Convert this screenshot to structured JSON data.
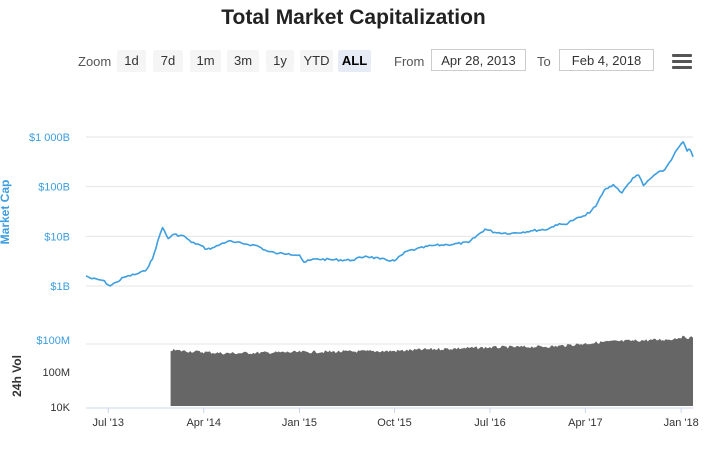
{
  "title": "Total Market Capitalization",
  "toolbar": {
    "zoom_label": "Zoom",
    "zoom_buttons": [
      "1d",
      "7d",
      "1m",
      "3m",
      "1y",
      "YTD",
      "ALL"
    ],
    "active_zoom": "ALL",
    "from_label": "From",
    "from_value": "Apr 28, 2013",
    "to_label": "To",
    "to_value": "Feb 4, 2018",
    "menu_icon": "hamburger-menu-icon"
  },
  "colors": {
    "line": "#3d9ee0",
    "axis_label": "#3d9ee0",
    "volume": "#666666",
    "grid": "#e6e6e6"
  },
  "chart_data": [
    {
      "type": "line",
      "ylabel": "Market Cap",
      "yscale": "log",
      "ylim": [
        "$1B",
        "$1 000B"
      ],
      "ytick_labels": [
        "$1B",
        "$10B",
        "$100B",
        "$1 000B"
      ],
      "xtick_labels": [
        "Jul '13",
        "Apr '14",
        "Jan '15",
        "Oct '15",
        "Jul '16",
        "Apr '17",
        "Jan '18"
      ],
      "grid": true,
      "series": [
        {
          "unit": "billion USD",
          "points": [
            [
              "2013-04-28",
              1.6
            ],
            [
              "2013-05-15",
              1.4
            ],
            [
              "2013-06-15",
              1.3
            ],
            [
              "2013-07-06",
              1.0
            ],
            [
              "2013-07-25",
              1.2
            ],
            [
              "2013-08-15",
              1.5
            ],
            [
              "2013-09-15",
              1.7
            ],
            [
              "2013-10-15",
              2.0
            ],
            [
              "2013-11-05",
              3.5
            ],
            [
              "2013-11-20",
              8.0
            ],
            [
              "2013-12-04",
              15.0
            ],
            [
              "2013-12-20",
              9.0
            ],
            [
              "2014-01-05",
              11.0
            ],
            [
              "2014-02-05",
              10.0
            ],
            [
              "2014-02-25",
              7.5
            ],
            [
              "2014-03-15",
              7.0
            ],
            [
              "2014-04-10",
              5.5
            ],
            [
              "2014-05-01",
              6.0
            ],
            [
              "2014-05-20",
              7.0
            ],
            [
              "2014-06-10",
              8.0
            ],
            [
              "2014-07-01",
              7.5
            ],
            [
              "2014-08-01",
              7.0
            ],
            [
              "2014-09-01",
              6.5
            ],
            [
              "2014-10-01",
              5.0
            ],
            [
              "2014-11-01",
              4.5
            ],
            [
              "2014-12-01",
              4.5
            ],
            [
              "2015-01-01",
              4.2
            ],
            [
              "2015-01-14",
              3.0
            ],
            [
              "2015-02-15",
              3.5
            ],
            [
              "2015-04-01",
              3.4
            ],
            [
              "2015-06-01",
              3.3
            ],
            [
              "2015-07-10",
              4.0
            ],
            [
              "2015-08-20",
              3.5
            ],
            [
              "2015-10-01",
              3.2
            ],
            [
              "2015-11-05",
              5.0
            ],
            [
              "2015-12-01",
              5.5
            ],
            [
              "2016-01-15",
              6.5
            ],
            [
              "2016-03-01",
              6.8
            ],
            [
              "2016-05-01",
              7.5
            ],
            [
              "2016-06-17",
              14.0
            ],
            [
              "2016-07-15",
              12.0
            ],
            [
              "2016-09-01",
              11.5
            ],
            [
              "2016-11-01",
              13.0
            ],
            [
              "2016-12-15",
              14.0
            ],
            [
              "2017-01-05",
              17.0
            ],
            [
              "2017-02-01",
              17.5
            ],
            [
              "2017-03-01",
              22.0
            ],
            [
              "2017-04-01",
              26.0
            ],
            [
              "2017-05-01",
              40.0
            ],
            [
              "2017-05-25",
              85.0
            ],
            [
              "2017-06-20",
              110.0
            ],
            [
              "2017-07-15",
              75.0
            ],
            [
              "2017-08-15",
              150.0
            ],
            [
              "2017-09-01",
              170.0
            ],
            [
              "2017-09-15",
              105.0
            ],
            [
              "2017-10-15",
              170.0
            ],
            [
              "2017-11-15",
              220.0
            ],
            [
              "2017-12-10",
              420.0
            ],
            [
              "2017-12-22",
              580.0
            ],
            [
              "2018-01-07",
              800.0
            ],
            [
              "2018-01-18",
              520.0
            ],
            [
              "2018-01-26",
              560.0
            ],
            [
              "2018-02-04",
              400.0
            ]
          ]
        }
      ]
    },
    {
      "type": "area",
      "ylabel": "24h Vol",
      "yscale": "log",
      "ytick_labels": [
        "10K",
        "100M",
        "$100M"
      ],
      "series": [
        {
          "unit": "million USD",
          "points": [
            [
              "2013-12-27",
              40
            ],
            [
              "2014-06-01",
              25
            ],
            [
              "2015-01-01",
              30
            ],
            [
              "2015-10-01",
              35
            ],
            [
              "2016-01-01",
              45
            ],
            [
              "2016-07-01",
              60
            ],
            [
              "2017-01-01",
              70
            ],
            [
              "2017-06-01",
              140
            ],
            [
              "2017-12-01",
              200
            ],
            [
              "2018-01-01",
              280
            ],
            [
              "2018-02-04",
              250
            ]
          ]
        }
      ]
    }
  ]
}
